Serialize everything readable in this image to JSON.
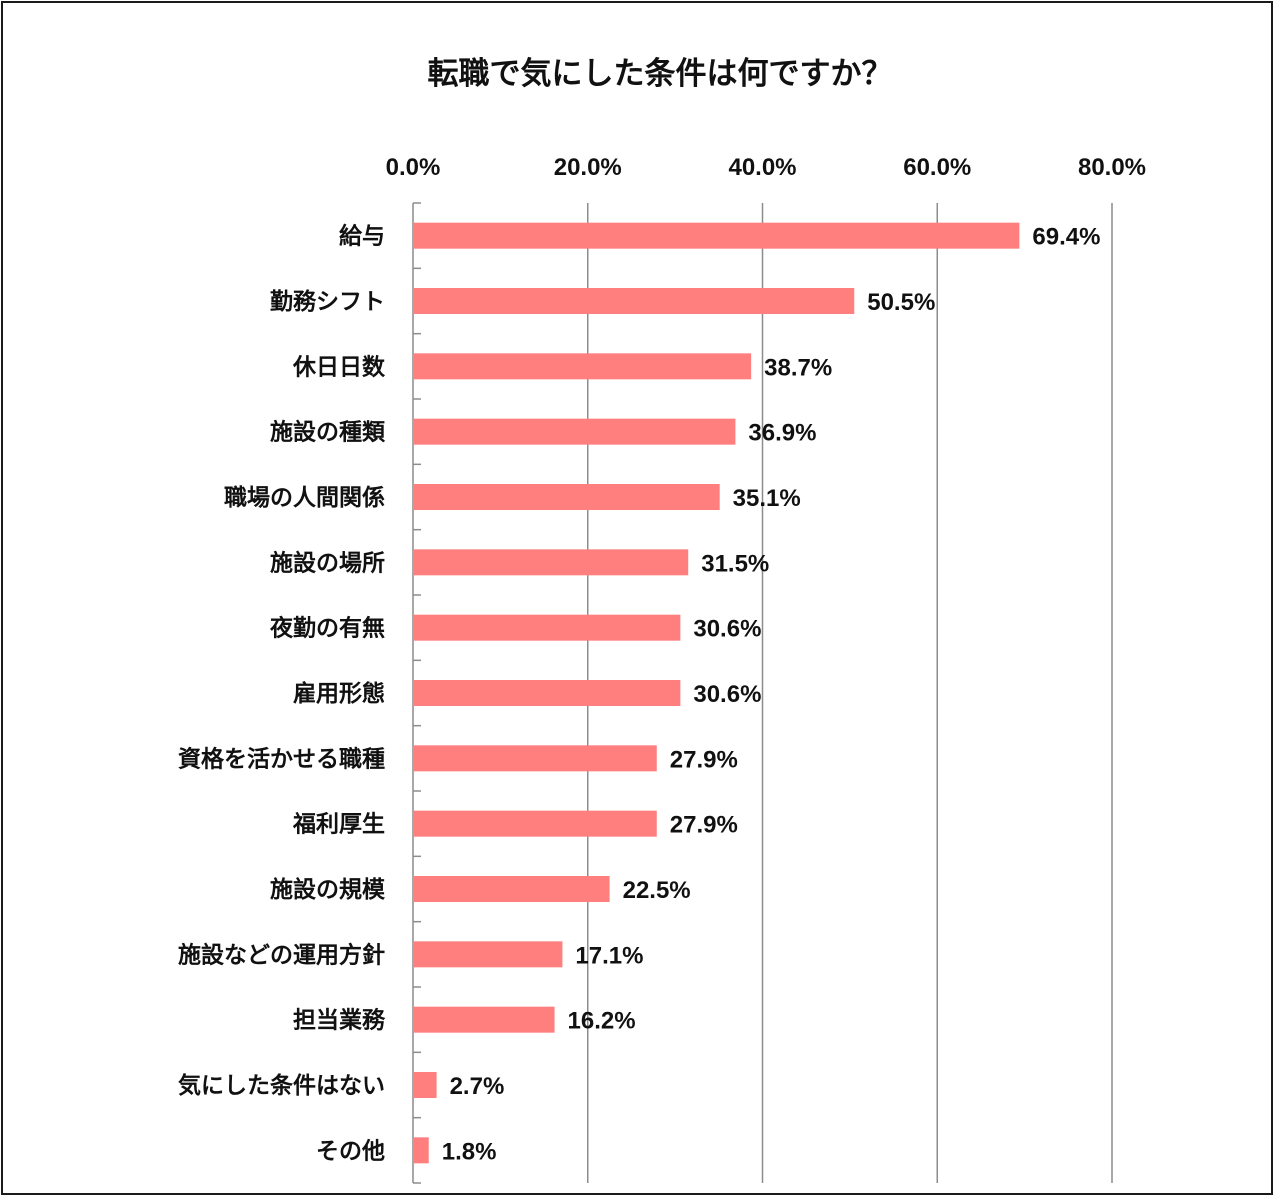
{
  "chart_data": {
    "type": "bar",
    "orientation": "horizontal",
    "title": "転職で気にした条件は何ですか？",
    "xlabel": "",
    "ylabel": "",
    "xlim": [
      0,
      80
    ],
    "x_ticks": [
      "0.0%",
      "20.0%",
      "40.0%",
      "60.0%",
      "80.0%"
    ],
    "x_tick_values": [
      0,
      20,
      40,
      60,
      80
    ],
    "grid": true,
    "legend": "none",
    "bar_color": "#ff7f7f",
    "categories": [
      "給与",
      "勤務シフト",
      "休日日数",
      "施設の種類",
      "職場の人間関係",
      "施設の場所",
      "夜勤の有無",
      "雇用形態",
      "資格を活かせる職種",
      "福利厚生",
      "施設の規模",
      "施設などの運用方針",
      "担当業務",
      "気にした条件はない",
      "その他"
    ],
    "values": [
      69.4,
      50.5,
      38.7,
      36.9,
      35.1,
      31.5,
      30.6,
      30.6,
      27.9,
      27.9,
      22.5,
      17.1,
      16.2,
      2.7,
      1.8
    ],
    "value_labels": [
      "69.4%",
      "50.5%",
      "38.7%",
      "36.9%",
      "35.1%",
      "31.5%",
      "30.6%",
      "30.6%",
      "27.9%",
      "27.9%",
      "22.5%",
      "17.1%",
      "16.2%",
      "2.7%",
      "1.8%"
    ]
  }
}
